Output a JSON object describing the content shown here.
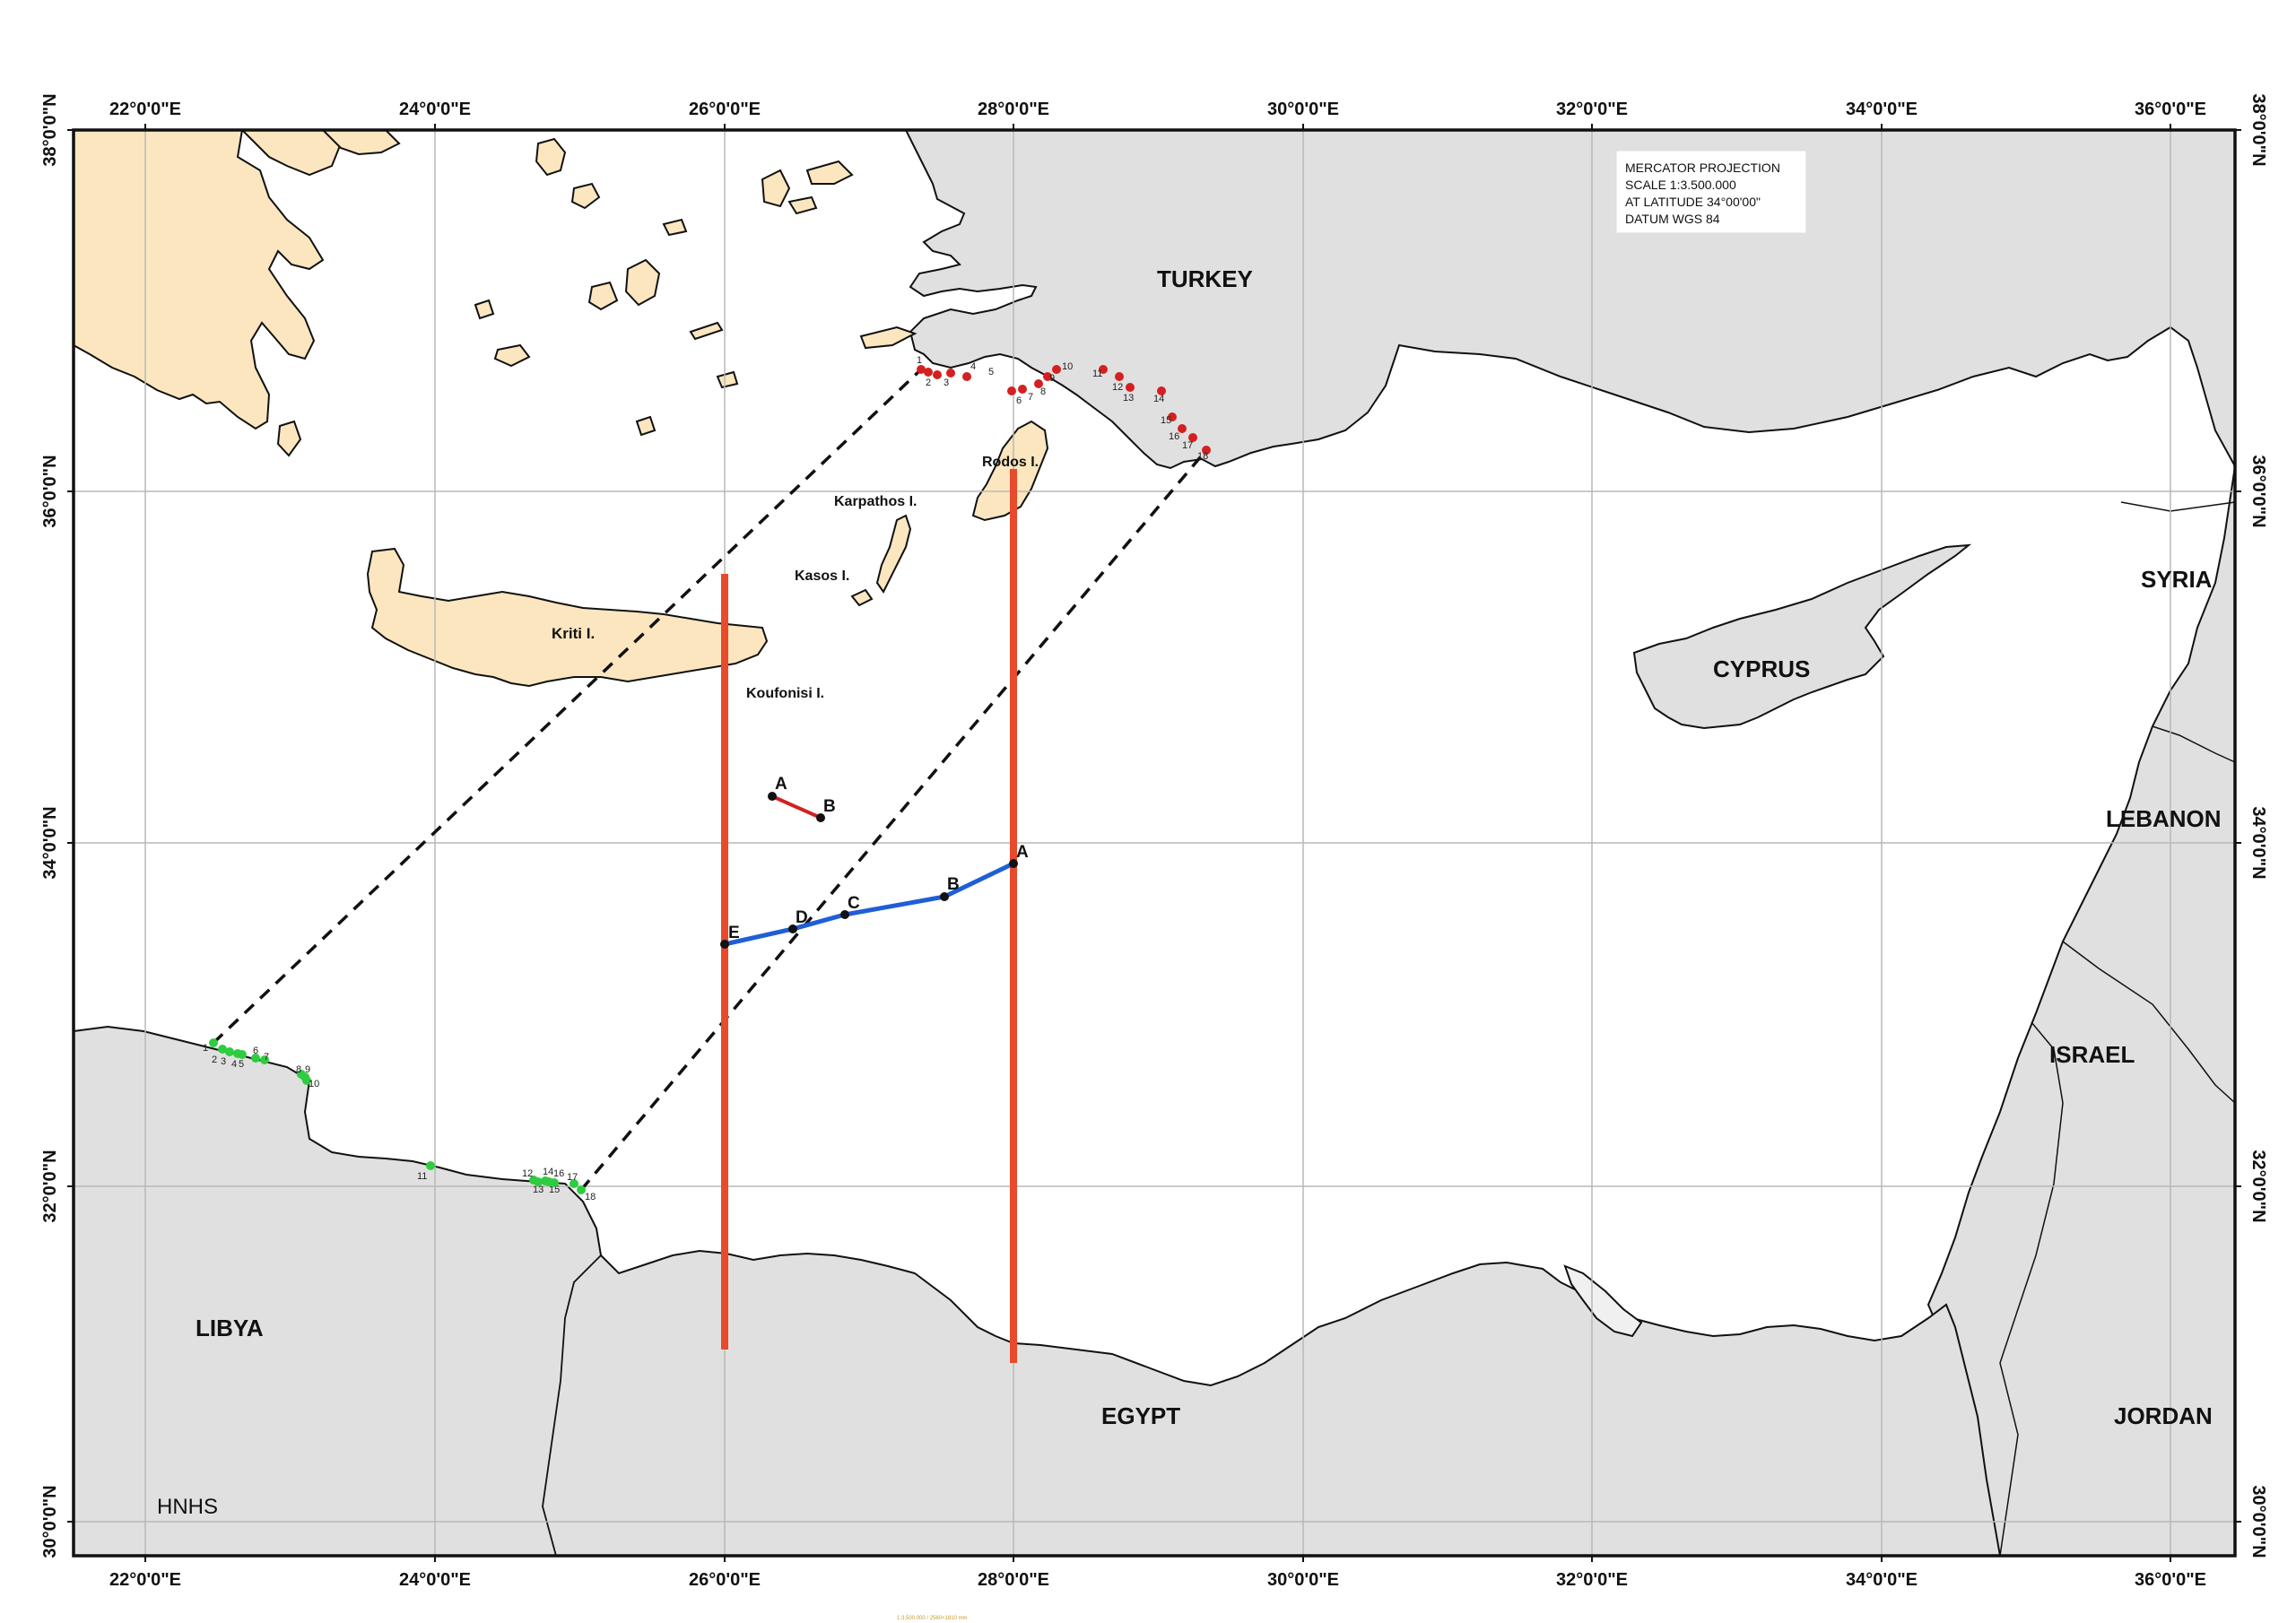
{
  "colors": {
    "sea": "#ffffff",
    "foreign_land": "#e0e0e0",
    "greek_land": "#fbe6bf",
    "coast": "#111111",
    "grid": "#b8b8b8",
    "red_line": "#e84a2c",
    "blue_line": "#1f5fd6",
    "red_points": "#d42020",
    "green_points": "#2ecc40",
    "dashed": "#111111"
  },
  "projection_box": {
    "lines": [
      "MERCATOR PROJECTION",
      "SCALE 1:3.500.000",
      "AT LATITUDE 34°00'00\"",
      "DATUM WGS 84"
    ]
  },
  "credit": "HNHS",
  "footer_note": "1:3.500.000 / 2560×1810 mm",
  "grid": {
    "lon_labels": [
      "22°0'0\"E",
      "24°0'0\"E",
      "26°0'0\"E",
      "28°0'0\"E",
      "30°0'0\"E",
      "32°0'0\"E",
      "34°0'0\"E",
      "36°0'0\"E"
    ],
    "lat_labels": [
      "38°0'0\"N",
      "36°0'0\"N",
      "34°0'0\"N",
      "32°0'0\"N",
      "30°0'0\"N"
    ]
  },
  "countries": {
    "turkey": "TURKEY",
    "syria": "SYRIA",
    "cyprus": "CYPRUS",
    "lebanon": "LEBANON",
    "israel": "ISRAEL",
    "jordan": "JORDAN",
    "egypt": "EGYPT",
    "libya": "LIBYA"
  },
  "islands": {
    "rodos": "Rodos I.",
    "karpathos": "Karpathos I.",
    "kasos": "Kasos I.",
    "kriti": "Kriti I.",
    "koufonisi": "Koufonisi I."
  },
  "red_segment_labels": {
    "a": "A",
    "b": "B"
  },
  "blue_line_labels": {
    "a": "A",
    "b": "B",
    "c": "C",
    "d": "D",
    "e": "E"
  },
  "turkey_points": [
    "1",
    "2",
    "3",
    "4",
    "5",
    "6",
    "7",
    "8",
    "9",
    "10",
    "11",
    "12",
    "13",
    "14",
    "15",
    "16",
    "17",
    "18"
  ],
  "libya_points": [
    "1",
    "2",
    "3",
    "4",
    "5",
    "6",
    "7",
    "8",
    "9",
    "10",
    "11",
    "12",
    "13",
    "14",
    "15",
    "16",
    "17",
    "18"
  ]
}
